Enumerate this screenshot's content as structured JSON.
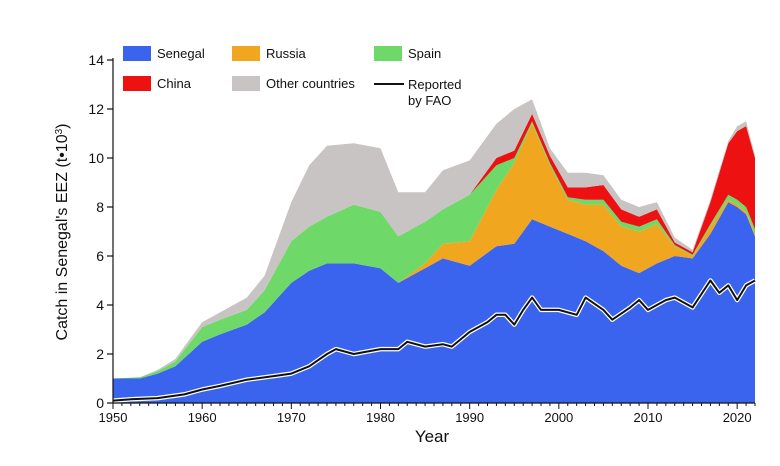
{
  "chart_data": {
    "type": "area",
    "stacked": true,
    "xlabel": "Year",
    "ylabel": "Catch in Senegal's EEZ (t•103)",
    "ylabel_main": "Catch in Senegal's EEZ (t•10",
    "ylabel_sup": "3",
    "ylabel_end": ")",
    "xlim": [
      1950,
      2022
    ],
    "ylim": [
      0,
      14
    ],
    "x_ticks": [
      1950,
      1960,
      1970,
      1980,
      1990,
      2000,
      2010,
      2020
    ],
    "x_tick_labels": [
      "1950",
      "1960",
      "1970",
      "1980",
      "1990",
      "2000",
      "2010",
      "2020"
    ],
    "y_ticks": [
      0,
      2,
      4,
      6,
      8,
      10,
      12,
      14
    ],
    "y_tick_labels": [
      "0",
      "2",
      "4",
      "6",
      "8",
      "10",
      "12",
      "14"
    ],
    "legend_position": "top-left",
    "series": [
      {
        "name": "Senegal",
        "color": "#3a63ee",
        "points": [
          [
            1950,
            1.0
          ],
          [
            1953,
            1.0
          ],
          [
            1955,
            1.2
          ],
          [
            1957,
            1.5
          ],
          [
            1960,
            2.5
          ],
          [
            1962,
            2.8
          ],
          [
            1965,
            3.2
          ],
          [
            1967,
            3.7
          ],
          [
            1970,
            4.9
          ],
          [
            1972,
            5.4
          ],
          [
            1974,
            5.7
          ],
          [
            1977,
            5.7
          ],
          [
            1980,
            5.5
          ],
          [
            1982,
            4.9
          ],
          [
            1985,
            5.5
          ],
          [
            1987,
            5.9
          ],
          [
            1990,
            5.6
          ],
          [
            1993,
            6.4
          ],
          [
            1995,
            6.5
          ],
          [
            1997,
            7.5
          ],
          [
            1999,
            7.2
          ],
          [
            2001,
            6.9
          ],
          [
            2003,
            6.6
          ],
          [
            2005,
            6.2
          ],
          [
            2007,
            5.6
          ],
          [
            2009,
            5.3
          ],
          [
            2011,
            5.7
          ],
          [
            2013,
            6.0
          ],
          [
            2015,
            5.9
          ],
          [
            2017,
            6.9
          ],
          [
            2019,
            8.2
          ],
          [
            2020,
            8.0
          ],
          [
            2021,
            7.7
          ],
          [
            2022,
            6.8
          ]
        ]
      },
      {
        "name": "Russia",
        "color": "#f0a61f",
        "points": [
          [
            1950,
            0
          ],
          [
            1953,
            0
          ],
          [
            1955,
            0
          ],
          [
            1957,
            0
          ],
          [
            1960,
            0
          ],
          [
            1962,
            0
          ],
          [
            1965,
            0
          ],
          [
            1967,
            0
          ],
          [
            1970,
            0
          ],
          [
            1972,
            0
          ],
          [
            1974,
            0
          ],
          [
            1977,
            0
          ],
          [
            1980,
            0
          ],
          [
            1982,
            0
          ],
          [
            1985,
            0.2
          ],
          [
            1987,
            0.6
          ],
          [
            1990,
            1.0
          ],
          [
            1993,
            2.3
          ],
          [
            1995,
            3.3
          ],
          [
            1997,
            3.9
          ],
          [
            1999,
            2.5
          ],
          [
            2001,
            1.4
          ],
          [
            2003,
            1.5
          ],
          [
            2005,
            1.9
          ],
          [
            2007,
            1.6
          ],
          [
            2009,
            1.7
          ],
          [
            2011,
            1.6
          ],
          [
            2013,
            0.4
          ],
          [
            2015,
            0.1
          ],
          [
            2017,
            0.3
          ],
          [
            2019,
            0.1
          ],
          [
            2020,
            0.1
          ],
          [
            2021,
            0.1
          ],
          [
            2022,
            0.1
          ]
        ]
      },
      {
        "name": "Spain",
        "color": "#6ed868",
        "points": [
          [
            1950,
            0
          ],
          [
            1953,
            0.05
          ],
          [
            1955,
            0.1
          ],
          [
            1957,
            0.2
          ],
          [
            1960,
            0.6
          ],
          [
            1962,
            0.6
          ],
          [
            1965,
            0.6
          ],
          [
            1967,
            0.9
          ],
          [
            1970,
            1.7
          ],
          [
            1972,
            1.8
          ],
          [
            1974,
            1.9
          ],
          [
            1977,
            2.4
          ],
          [
            1980,
            2.3
          ],
          [
            1982,
            1.9
          ],
          [
            1985,
            1.7
          ],
          [
            1987,
            1.4
          ],
          [
            1990,
            1.9
          ],
          [
            1993,
            1.0
          ],
          [
            1995,
            0.2
          ],
          [
            1997,
            0.1
          ],
          [
            1999,
            0.1
          ],
          [
            2001,
            0.1
          ],
          [
            2003,
            0.2
          ],
          [
            2005,
            0.2
          ],
          [
            2007,
            0.2
          ],
          [
            2009,
            0.2
          ],
          [
            2011,
            0.2
          ],
          [
            2013,
            0.05
          ],
          [
            2015,
            0.05
          ],
          [
            2017,
            0.1
          ],
          [
            2019,
            0.2
          ],
          [
            2020,
            0.2
          ],
          [
            2021,
            0.2
          ],
          [
            2022,
            0.2
          ]
        ]
      },
      {
        "name": "China",
        "color": "#ee1111",
        "points": [
          [
            1950,
            0
          ],
          [
            1953,
            0
          ],
          [
            1955,
            0
          ],
          [
            1957,
            0
          ],
          [
            1960,
            0
          ],
          [
            1962,
            0
          ],
          [
            1965,
            0
          ],
          [
            1967,
            0
          ],
          [
            1970,
            0
          ],
          [
            1972,
            0
          ],
          [
            1974,
            0
          ],
          [
            1977,
            0
          ],
          [
            1980,
            0
          ],
          [
            1982,
            0
          ],
          [
            1985,
            0
          ],
          [
            1987,
            0
          ],
          [
            1990,
            0
          ],
          [
            1993,
            0.3
          ],
          [
            1995,
            0.3
          ],
          [
            1997,
            0.3
          ],
          [
            1999,
            0.3
          ],
          [
            2001,
            0.4
          ],
          [
            2003,
            0.5
          ],
          [
            2005,
            0.6
          ],
          [
            2007,
            0.5
          ],
          [
            2009,
            0.4
          ],
          [
            2011,
            0.4
          ],
          [
            2013,
            0.1
          ],
          [
            2015,
            0.1
          ],
          [
            2017,
            0.9
          ],
          [
            2019,
            2.1
          ],
          [
            2020,
            2.8
          ],
          [
            2021,
            3.3
          ],
          [
            2022,
            2.9
          ]
        ]
      },
      {
        "name": "Other countries",
        "color": "#c8c4c4",
        "points": [
          [
            1950,
            0
          ],
          [
            1953,
            0
          ],
          [
            1955,
            0.05
          ],
          [
            1957,
            0.1
          ],
          [
            1960,
            0.2
          ],
          [
            1962,
            0.3
          ],
          [
            1965,
            0.5
          ],
          [
            1967,
            0.6
          ],
          [
            1970,
            1.6
          ],
          [
            1972,
            2.5
          ],
          [
            1974,
            2.9
          ],
          [
            1977,
            2.5
          ],
          [
            1980,
            2.6
          ],
          [
            1982,
            1.8
          ],
          [
            1985,
            1.2
          ],
          [
            1987,
            1.6
          ],
          [
            1990,
            1.4
          ],
          [
            1993,
            1.4
          ],
          [
            1995,
            1.7
          ],
          [
            1997,
            0.6
          ],
          [
            1999,
            0.3
          ],
          [
            2001,
            0.6
          ],
          [
            2003,
            0.6
          ],
          [
            2005,
            0.4
          ],
          [
            2007,
            0.4
          ],
          [
            2009,
            0.4
          ],
          [
            2011,
            0.3
          ],
          [
            2013,
            0.2
          ],
          [
            2015,
            0.1
          ],
          [
            2017,
            0.1
          ],
          [
            2019,
            0.1
          ],
          [
            2020,
            0.2
          ],
          [
            2021,
            0.2
          ],
          [
            2022,
            0.1
          ]
        ]
      }
    ],
    "line": {
      "name": "Reported by FAO",
      "name_line1": "Reported",
      "name_line2": "by FAO",
      "color": "#111111",
      "points": [
        [
          1950,
          0.1
        ],
        [
          1952,
          0.15
        ],
        [
          1955,
          0.2
        ],
        [
          1958,
          0.35
        ],
        [
          1960,
          0.55
        ],
        [
          1962,
          0.7
        ],
        [
          1965,
          0.95
        ],
        [
          1968,
          1.1
        ],
        [
          1970,
          1.2
        ],
        [
          1972,
          1.5
        ],
        [
          1974,
          2.0
        ],
        [
          1975,
          2.2
        ],
        [
          1977,
          2.0
        ],
        [
          1980,
          2.2
        ],
        [
          1982,
          2.2
        ],
        [
          1983,
          2.5
        ],
        [
          1985,
          2.3
        ],
        [
          1987,
          2.4
        ],
        [
          1988,
          2.3
        ],
        [
          1990,
          2.9
        ],
        [
          1992,
          3.3
        ],
        [
          1993,
          3.6
        ],
        [
          1994,
          3.6
        ],
        [
          1995,
          3.2
        ],
        [
          1996,
          3.8
        ],
        [
          1997,
          4.3
        ],
        [
          1998,
          3.8
        ],
        [
          2000,
          3.8
        ],
        [
          2002,
          3.6
        ],
        [
          2003,
          4.3
        ],
        [
          2005,
          3.8
        ],
        [
          2006,
          3.4
        ],
        [
          2008,
          3.9
        ],
        [
          2009,
          4.2
        ],
        [
          2010,
          3.8
        ],
        [
          2012,
          4.2
        ],
        [
          2013,
          4.3
        ],
        [
          2015,
          3.9
        ],
        [
          2017,
          5.0
        ],
        [
          2018,
          4.5
        ],
        [
          2019,
          4.8
        ],
        [
          2020,
          4.2
        ],
        [
          2021,
          4.8
        ],
        [
          2022,
          5.0
        ]
      ]
    }
  }
}
